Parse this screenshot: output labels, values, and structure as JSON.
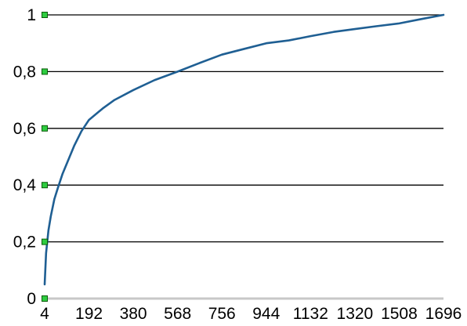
{
  "chart_data": {
    "type": "line",
    "title": "",
    "xlabel": "",
    "ylabel": "",
    "x_ticks": [
      "4",
      "192",
      "380",
      "568",
      "756",
      "944",
      "1132",
      "1320",
      "1508",
      "1696"
    ],
    "y_ticks": [
      "0",
      "0,2",
      "0,4",
      "0,6",
      "0,8",
      "1"
    ],
    "xlim": [
      4,
      1696
    ],
    "ylim": [
      0,
      1
    ],
    "grid": "horizontal",
    "legend": "none",
    "series": [
      {
        "color": "#1f5f93",
        "x": [
          4,
          10,
          20,
          30,
          45,
          60,
          80,
          100,
          130,
          160,
          192,
          250,
          300,
          380,
          470,
          568,
          660,
          756,
          850,
          944,
          1040,
          1132,
          1230,
          1320,
          1410,
          1508,
          1600,
          1696
        ],
        "y": [
          0.05,
          0.16,
          0.24,
          0.29,
          0.35,
          0.39,
          0.44,
          0.48,
          0.54,
          0.59,
          0.63,
          0.67,
          0.7,
          0.735,
          0.77,
          0.8,
          0.83,
          0.86,
          0.88,
          0.9,
          0.91,
          0.925,
          0.94,
          0.95,
          0.96,
          0.97,
          0.985,
          1.0
        ]
      }
    ]
  },
  "style": {
    "background": "#ffffff",
    "gridline": "#000000",
    "line": "#1f5f93",
    "marker_fill": "#2ecc40",
    "marker_stroke": "#0a5c0a",
    "axis_base": "#c8c8c8"
  }
}
